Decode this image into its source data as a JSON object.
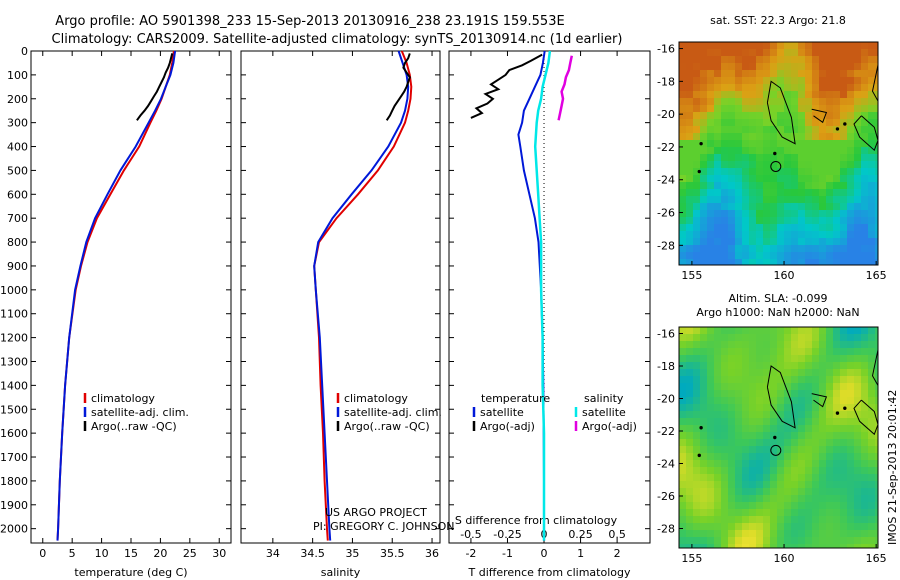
{
  "title_line1": "Argo profile: AO 5901398_233 15-Sep-2013 20130916_238 23.191S 159.553E",
  "title_line2": "Climatology: CARS2009. Satellite-adjusted climatology: synTS_20130914.nc (1d earlier)",
  "project_line1": "US ARGO PROJECT",
  "project_line2": "PI: GREGORY C. JOHNSON",
  "timestamp": "IMOS 21-Sep-2013 20:01:42",
  "colors": {
    "climatology": "#e00000",
    "satellite": "#0018d8",
    "argo": "#000000",
    "sal_satellite": "#00e8e8",
    "sal_argo": "#e000e0"
  },
  "chart_data": [
    {
      "type": "line",
      "xlabel": "temperature (deg C)",
      "xlim": [
        -2,
        32
      ],
      "xticks": [
        0,
        5,
        10,
        15,
        20,
        25,
        30
      ],
      "ylim": [
        0,
        2060
      ],
      "yticks": [
        0,
        100,
        200,
        300,
        400,
        500,
        600,
        700,
        800,
        900,
        1000,
        1100,
        1200,
        1300,
        1400,
        1500,
        1600,
        1700,
        1800,
        1900,
        2000
      ],
      "legend": [
        "climatology",
        "satellite-adj. clim.",
        "Argo(..raw -QC)"
      ],
      "series": [
        {
          "name": "climatology",
          "depth": [
            0,
            50,
            100,
            150,
            200,
            250,
            300,
            400,
            500,
            600,
            700,
            800,
            900,
            1000,
            1200,
            1400,
            1600,
            1800,
            2000,
            2050
          ],
          "values": [
            22.3,
            22.0,
            21.6,
            20.9,
            20.2,
            19.3,
            18.3,
            16.4,
            13.8,
            11.5,
            9.2,
            7.6,
            6.5,
            5.6,
            4.5,
            3.8,
            3.3,
            2.9,
            2.6,
            2.5
          ]
        },
        {
          "name": "satellite-adj. clim.",
          "depth": [
            0,
            50,
            100,
            150,
            200,
            250,
            300,
            400,
            500,
            600,
            700,
            800,
            900,
            1000,
            1200,
            1400,
            1600,
            1800,
            2000,
            2050
          ],
          "values": [
            22.5,
            22.2,
            21.7,
            20.9,
            20.1,
            19.1,
            18.0,
            15.8,
            13.2,
            11.0,
            8.9,
            7.4,
            6.4,
            5.5,
            4.5,
            3.8,
            3.3,
            2.9,
            2.6,
            2.5
          ]
        },
        {
          "name": "Argo(..raw -QC)",
          "depth": [
            10,
            30,
            50,
            70,
            90,
            110,
            130,
            150,
            170,
            190,
            210,
            230,
            250,
            270,
            290
          ],
          "values": [
            22.0,
            21.8,
            21.6,
            21.3,
            20.9,
            20.6,
            20.2,
            19.8,
            19.4,
            18.9,
            18.4,
            17.9,
            17.3,
            16.6,
            16.0
          ]
        }
      ]
    },
    {
      "type": "line",
      "xlabel": "salinity",
      "xlim": [
        33.6,
        36.1
      ],
      "xticks": [
        34,
        34.5,
        35,
        35.5,
        36
      ],
      "ylim": [
        0,
        2060
      ],
      "legend": [
        "climatology",
        "satellite-adj. clim.",
        "Argo(..raw -QC)"
      ],
      "series": [
        {
          "name": "climatology",
          "depth": [
            0,
            50,
            100,
            150,
            200,
            250,
            300,
            400,
            500,
            600,
            700,
            800,
            900,
            1000,
            1200,
            1400,
            1600,
            1800,
            2000,
            2050
          ],
          "values": [
            35.62,
            35.68,
            35.72,
            35.74,
            35.73,
            35.7,
            35.66,
            35.52,
            35.32,
            35.07,
            34.8,
            34.58,
            34.52,
            34.54,
            34.58,
            34.6,
            34.63,
            34.65,
            34.68,
            34.69
          ]
        },
        {
          "name": "satellite-adj. clim.",
          "depth": [
            0,
            50,
            100,
            150,
            200,
            250,
            300,
            400,
            500,
            600,
            700,
            800,
            900,
            1000,
            1200,
            1400,
            1600,
            1800,
            2000,
            2050
          ],
          "values": [
            35.58,
            35.63,
            35.68,
            35.7,
            35.69,
            35.66,
            35.61,
            35.45,
            35.24,
            34.99,
            34.75,
            34.57,
            34.52,
            34.54,
            34.59,
            34.62,
            34.65,
            34.68,
            34.71,
            34.72
          ]
        },
        {
          "name": "Argo(..raw -QC)",
          "depth": [
            10,
            30,
            50,
            70,
            90,
            110,
            130,
            150,
            170,
            190,
            210,
            230,
            250,
            270,
            290
          ],
          "values": [
            35.72,
            35.7,
            35.66,
            35.64,
            35.68,
            35.72,
            35.7,
            35.68,
            35.65,
            35.61,
            35.57,
            35.53,
            35.5,
            35.47,
            35.43
          ]
        }
      ]
    },
    {
      "type": "line",
      "xlabel": "T difference from climatology",
      "top_label": "S difference from climatology",
      "xlim": [
        -2.6,
        2.9
      ],
      "xticks": [
        -2,
        -1,
        0,
        1,
        2
      ],
      "top_xticks": [
        -0.5,
        -0.25,
        0,
        0.25,
        0.5
      ],
      "top_xtick_labels": [
        "-0.5",
        "-0.25",
        "0",
        "0.25",
        "0.5"
      ],
      "ylim": [
        0,
        2060
      ],
      "legend_headers": [
        "temperature",
        "salinity"
      ],
      "legend_left": [
        "satellite",
        "Argo(-adj)"
      ],
      "legend_right": [
        "satellite",
        "Argo(-adj)"
      ],
      "series": [
        {
          "name": "temperature satellite",
          "depth": [
            0,
            50,
            100,
            150,
            200,
            250,
            300,
            350,
            400,
            500,
            600,
            700,
            800,
            1000,
            1200,
            1400,
            1600,
            1800,
            2000,
            2050
          ],
          "values": [
            0.02,
            -0.03,
            -0.1,
            -0.25,
            -0.4,
            -0.55,
            -0.6,
            -0.7,
            -0.65,
            -0.55,
            -0.4,
            -0.25,
            -0.15,
            -0.08,
            -0.04,
            -0.02,
            -0.01,
            0.0,
            0.0,
            0.0
          ]
        },
        {
          "name": "temperature Argo(-adj)",
          "depth": [
            15,
            40,
            60,
            80,
            100,
            120,
            140,
            160,
            180,
            200,
            220,
            240,
            260,
            280
          ],
          "values": [
            -0.05,
            -0.35,
            -0.6,
            -0.95,
            -1.05,
            -1.25,
            -1.45,
            -1.25,
            -1.6,
            -1.4,
            -1.55,
            -1.85,
            -1.7,
            -2.0
          ]
        },
        {
          "name": "salinity satellite",
          "depth": [
            0,
            50,
            100,
            150,
            200,
            250,
            300,
            400,
            500,
            600,
            700,
            800,
            1000,
            1200,
            1400,
            1600,
            1800,
            2000,
            2050
          ],
          "values": [
            0.04,
            0.03,
            0.01,
            -0.01,
            -0.02,
            -0.04,
            -0.05,
            -0.06,
            -0.05,
            -0.04,
            -0.03,
            -0.02,
            -0.02,
            -0.01,
            -0.01,
            0.0,
            0.0,
            0.0,
            0.0
          ]
        },
        {
          "name": "salinity Argo(-adj)",
          "depth": [
            20,
            50,
            80,
            110,
            140,
            170,
            200,
            230,
            260,
            290
          ],
          "values": [
            0.19,
            0.18,
            0.17,
            0.15,
            0.14,
            0.12,
            0.13,
            0.12,
            0.11,
            0.1
          ]
        }
      ]
    },
    {
      "type": "heatmap",
      "title": "sat. SST: 22.3 Argo: 21.8",
      "xticks": [
        155,
        160,
        165
      ],
      "yticks": [
        -16,
        -18,
        -20,
        -22,
        -24,
        -26,
        -28
      ],
      "xlim": [
        154.3,
        165.1
      ],
      "ylim": [
        -29.2,
        -15.6
      ],
      "argo_position": [
        159.553,
        -23.191
      ]
    },
    {
      "type": "heatmap",
      "title_line1": "Altim. SLA: -0.099",
      "title_line2": "Argo h1000: NaN h2000: NaN",
      "xticks": [
        155,
        160,
        165
      ],
      "yticks": [
        -16,
        -18,
        -20,
        -22,
        -24,
        -26,
        -28
      ],
      "xlim": [
        154.3,
        165.1
      ],
      "ylim": [
        -29.2,
        -15.6
      ],
      "argo_position": [
        159.553,
        -23.191
      ]
    }
  ]
}
